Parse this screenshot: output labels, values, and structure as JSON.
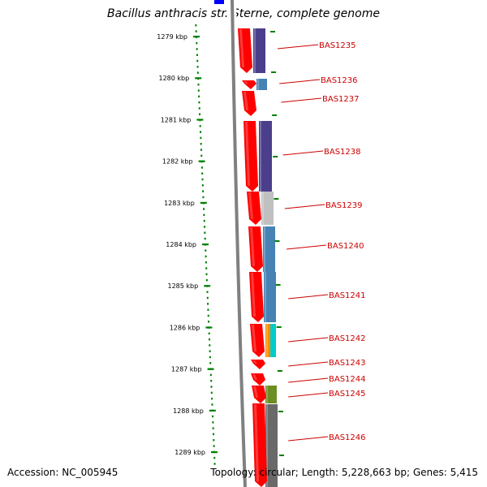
{
  "title": "Bacillus anthracis str. Sterne, complete genome",
  "footer": {
    "accession": "Accession: NC_005945",
    "topology": "Topology: circular; Length: 5,228,663 bp; Genes: 5,415"
  },
  "ruler": {
    "unit": "kbp",
    "ticks": [
      "1279 kbp",
      "1280 kbp",
      "1281 kbp",
      "1282 kbp",
      "1283 kbp",
      "1284 kbp",
      "1285 kbp",
      "1286 kbp",
      "1287 kbp",
      "1288 kbp",
      "1289 kbp"
    ]
  },
  "colors": {
    "backbone": "#808080",
    "gene_arrow": "#ff0000",
    "label": "#cc0000",
    "tick": "#008000",
    "top_marker": "#0000ff"
  },
  "genes": [
    {
      "name": "BAS1235",
      "cog_color": "#4b3f8c"
    },
    {
      "name": "BAS1236",
      "cog_color": "#4682b4"
    },
    {
      "name": "BAS1237",
      "cog_color": ""
    },
    {
      "name": "BAS1238",
      "cog_color": "#4b3f8c"
    },
    {
      "name": "BAS1239",
      "cog_color": "#c0c0c0"
    },
    {
      "name": "BAS1240",
      "cog_color": "#4682b4"
    },
    {
      "name": "BAS1241",
      "cog_color": "#4682b4"
    },
    {
      "name": "BAS1242",
      "cog_color": "#ff8c00",
      "cog_color2": "#00cccc"
    },
    {
      "name": "BAS1243",
      "cog_color": ""
    },
    {
      "name": "BAS1244",
      "cog_color": ""
    },
    {
      "name": "BAS1245",
      "cog_color": "#6b8e23"
    },
    {
      "name": "BAS1246",
      "cog_color": "#696969"
    }
  ]
}
